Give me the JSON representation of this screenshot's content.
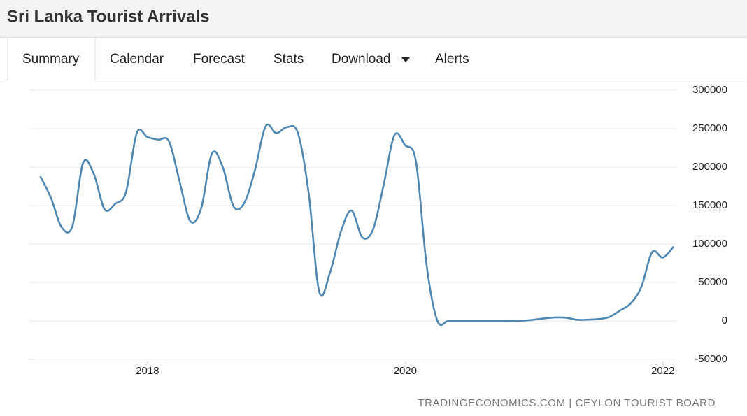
{
  "header": {
    "title": "Sri Lanka Tourist Arrivals"
  },
  "tabs": [
    "Summary",
    "Calendar",
    "Forecast",
    "Stats",
    "Download",
    "Alerts"
  ],
  "chart_data": {
    "type": "line",
    "x": [
      2017.167,
      2017.25,
      2017.333,
      2017.417,
      2017.5,
      2017.583,
      2017.667,
      2017.75,
      2017.833,
      2017.917,
      2018,
      2018.083,
      2018.167,
      2018.25,
      2018.333,
      2018.417,
      2018.5,
      2018.583,
      2018.667,
      2018.75,
      2018.833,
      2018.917,
      2019,
      2019.083,
      2019.167,
      2019.25,
      2019.333,
      2019.417,
      2019.5,
      2019.583,
      2019.667,
      2019.75,
      2019.833,
      2019.917,
      2020,
      2020.083,
      2020.167,
      2020.25,
      2020.333,
      2020.417,
      2020.5,
      2020.583,
      2020.667,
      2020.75,
      2020.833,
      2020.917,
      2021,
      2021.083,
      2021.167,
      2021.25,
      2021.333,
      2021.417,
      2021.5,
      2021.583,
      2021.667,
      2021.75,
      2021.833,
      2021.917,
      2022,
      2022.083
    ],
    "series": [
      {
        "name": "Tourist Arrivals",
        "color": "#4e87b2",
        "values": [
          188076,
          160249,
          121891,
          123351,
          205482,
          190928,
          145077,
          152429,
          167511,
          244536,
          238924,
          235618,
          233382,
          180429,
          129466,
          146828,
          217829,
          200359,
          149087,
          153123,
          195582,
          253169,
          244239,
          252033,
          244328,
          166975,
          37802,
          63072,
          115701,
          143587,
          108575,
          118743,
          176984,
          241663,
          228434,
          207507,
          71370,
          0,
          0,
          0,
          0,
          0,
          0,
          0,
          0,
          393,
          1682,
          3366,
          4581,
          4168,
          1497,
          1614,
          2429,
          5040,
          13547,
          22771,
          44294,
          89506,
          82327,
          96507
        ]
      }
    ],
    "xlim": [
      2017.083,
      2022.11
    ],
    "xticks": [
      2018,
      2020,
      2022
    ],
    "ylim": [
      -50000,
      300000
    ],
    "yticks": [
      -50000,
      0,
      50000,
      100000,
      150000,
      200000,
      250000,
      300000
    ],
    "grid": true
  },
  "source": "TRADINGECONOMICS.COM | CEYLON TOURIST BOARD"
}
